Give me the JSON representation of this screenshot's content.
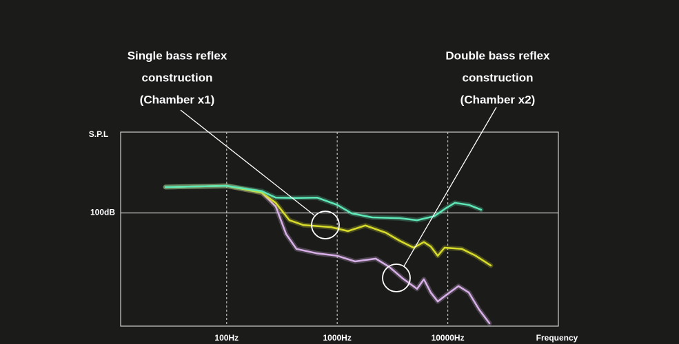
{
  "chart_data": {
    "type": "line",
    "annotations": [
      {
        "lines": [
          "Single bass reflex",
          "construction",
          "(Chamber x1)"
        ]
      },
      {
        "lines": [
          "Double bass reflex",
          "construction",
          "(Chamber x2)"
        ]
      }
    ],
    "x_label": "Frequency",
    "y_label": "S.P.L",
    "x_scale": "log",
    "xlim": [
      11,
      100000
    ],
    "ylim": [
      72,
      120
    ],
    "xticks": [
      {
        "value": 100,
        "label": "100Hz"
      },
      {
        "value": 1000,
        "label": "1000Hz"
      },
      {
        "value": 10000,
        "label": "10000Hz"
      }
    ],
    "yticks": [
      {
        "value": 100,
        "label": "100dB"
      }
    ],
    "grid": true,
    "series": [
      {
        "color": "#5ee8b8",
        "x": [
          28,
          100,
          208,
          278,
          428,
          658,
          1000,
          1350,
          2070,
          3680,
          5270,
          7550,
          9770,
          11600,
          15500,
          20000
        ],
        "values": [
          106.4,
          106.7,
          105.4,
          103.8,
          103.7,
          103.8,
          102.0,
          99.9,
          98.9,
          98.7,
          98.2,
          99.2,
          101.3,
          102.5,
          102.0,
          100.8
        ]
      },
      {
        "color": "#d8dc2a",
        "x": [
          28,
          100,
          208,
          278,
          370,
          493,
          877,
          1250,
          1800,
          2760,
          3680,
          4910,
          6080,
          7020,
          8110,
          9350,
          13400,
          17900,
          24500
        ],
        "values": [
          106.4,
          106.7,
          105.0,
          102.5,
          98.2,
          97.0,
          96.5,
          95.5,
          96.9,
          95.1,
          93.1,
          91.4,
          92.8,
          91.7,
          89.4,
          91.4,
          91.1,
          89.4,
          87.0
        ]
      },
      {
        "color": "#d8b0e8",
        "x": [
          28,
          100,
          208,
          278,
          345,
          428,
          658,
          1000,
          1450,
          2230,
          2970,
          3950,
          5270,
          6080,
          7020,
          8110,
          9770,
          12500,
          15500,
          19200,
          23800
        ],
        "values": [
          106.4,
          106.7,
          105.0,
          101.6,
          94.8,
          91.1,
          90.0,
          89.4,
          88.0,
          88.7,
          86.6,
          83.7,
          81.2,
          83.6,
          80.3,
          78.1,
          79.8,
          81.9,
          80.3,
          76.1,
          72.7
        ]
      }
    ]
  }
}
